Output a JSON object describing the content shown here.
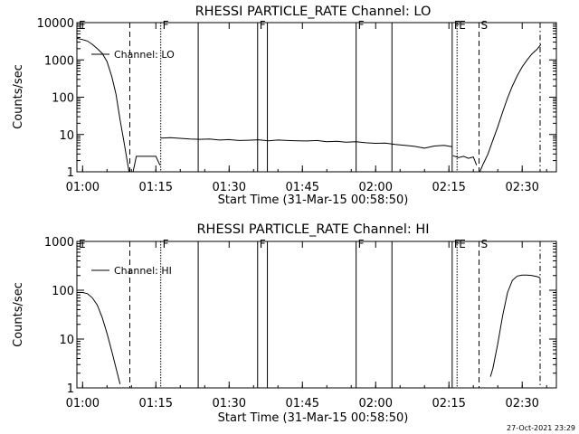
{
  "footer": {
    "timestamp": "27-Oct-2021 23:29"
  },
  "chart_data": [
    {
      "type": "line",
      "title": "RHESSI PARTICLE_RATE Channel: LO",
      "xlabel": "Start Time (31-Mar-15 00:58:50)",
      "ylabel": "Counts/sec",
      "yscale": "log",
      "xlim": [
        "00:58:50",
        "02:37:00"
      ],
      "ylim": [
        1,
        10000
      ],
      "x_ticks": [
        "01:00",
        "01:15",
        "01:30",
        "01:45",
        "02:00",
        "02:15",
        "02:30"
      ],
      "y_ticks": [
        "1",
        "10",
        "100",
        "1000",
        "10000"
      ],
      "legend": {
        "label": "Channel: LO",
        "position": "top-left"
      },
      "event_markers": [
        {
          "time": "00:58:50",
          "label": "E",
          "style": "dashdot"
        },
        {
          "time": "01:09:40",
          "label": "",
          "style": "dashed"
        },
        {
          "time": "01:16:00",
          "label": "F",
          "style": "dotted"
        },
        {
          "time": "01:23:40",
          "label": "",
          "style": "solid"
        },
        {
          "time": "01:35:50",
          "label": "F",
          "style": "solid"
        },
        {
          "time": "01:37:50",
          "label": "",
          "style": "solid"
        },
        {
          "time": "01:56:00",
          "label": "F",
          "style": "solid"
        },
        {
          "time": "02:03:20",
          "label": "",
          "style": "solid"
        },
        {
          "time": "02:15:40",
          "label": "F",
          "style": "solid"
        },
        {
          "time": "02:16:40",
          "label": "E",
          "style": "dotted"
        },
        {
          "time": "02:21:10",
          "label": "S",
          "style": "dashed"
        },
        {
          "time": "02:33:40",
          "label": "",
          "style": "dashdot"
        }
      ],
      "series": [
        {
          "segments": [
            [
              [
                "00:58:50",
                3800
              ],
              [
                "01:00:00",
                3500
              ],
              [
                "01:01:00",
                3200
              ],
              [
                "01:02:00",
                2600
              ],
              [
                "01:03:00",
                2000
              ],
              [
                "01:04:00",
                1500
              ],
              [
                "01:05:00",
                900
              ],
              [
                "01:06:00",
                350
              ],
              [
                "01:06:50",
                120
              ],
              [
                "01:07:40",
                25
              ],
              [
                "01:08:30",
                6
              ],
              [
                "01:09:30",
                1
              ],
              [
                "01:10:20",
                1
              ],
              [
                "01:11:00",
                2.6
              ],
              [
                "01:12:00",
                2.6
              ],
              [
                "01:13:00",
                2.6
              ],
              [
                "01:14:00",
                2.6
              ],
              [
                "01:15:00",
                2.6
              ],
              [
                "01:15:50",
                1.5
              ]
            ],
            [
              [
                "01:16:00",
                8
              ],
              [
                "01:18:00",
                8.2
              ],
              [
                "01:20:00",
                7.9
              ],
              [
                "01:22:00",
                7.6
              ],
              [
                "01:24:00",
                7.4
              ],
              [
                "01:26:00",
                7.6
              ],
              [
                "01:28:00",
                7.1
              ],
              [
                "01:30:00",
                7.3
              ],
              [
                "01:32:00",
                6.9
              ],
              [
                "01:34:00",
                7.0
              ],
              [
                "01:36:00",
                7.2
              ],
              [
                "01:38:00",
                6.8
              ],
              [
                "01:40:00",
                7.1
              ],
              [
                "01:42:00",
                6.9
              ],
              [
                "01:44:00",
                6.8
              ],
              [
                "01:46:00",
                6.7
              ],
              [
                "01:48:00",
                6.9
              ],
              [
                "01:50:00",
                6.4
              ],
              [
                "01:52:00",
                6.6
              ],
              [
                "01:54:00",
                6.2
              ],
              [
                "01:56:00",
                6.4
              ],
              [
                "01:58:00",
                6.0
              ],
              [
                "02:00:00",
                5.8
              ],
              [
                "02:02:00",
                5.9
              ],
              [
                "02:04:00",
                5.4
              ],
              [
                "02:06:00",
                5.1
              ],
              [
                "02:08:00",
                4.8
              ],
              [
                "02:10:00",
                4.3
              ],
              [
                "02:12:00",
                4.9
              ],
              [
                "02:14:00",
                5.1
              ],
              [
                "02:15:40",
                4.7
              ]
            ],
            [
              [
                "02:15:50",
                2.7
              ],
              [
                "02:17:00",
                2.4
              ],
              [
                "02:18:00",
                2.6
              ],
              [
                "02:19:00",
                2.3
              ],
              [
                "02:20:00",
                2.5
              ],
              [
                "02:20:40",
                1.5
              ]
            ],
            [
              [
                "02:21:20",
                1
              ],
              [
                "02:22:00",
                1.6
              ],
              [
                "02:23:00",
                3
              ],
              [
                "02:24:00",
                7
              ],
              [
                "02:25:00",
                16
              ],
              [
                "02:26:00",
                40
              ],
              [
                "02:27:00",
                95
              ],
              [
                "02:28:00",
                200
              ],
              [
                "02:29:00",
                380
              ],
              [
                "02:30:00",
                650
              ],
              [
                "02:31:00",
                1000
              ],
              [
                "02:32:00",
                1450
              ],
              [
                "02:33:00",
                1900
              ],
              [
                "02:33:50",
                2600
              ]
            ]
          ]
        }
      ]
    },
    {
      "type": "line",
      "title": "RHESSI PARTICLE_RATE Channel: HI",
      "xlabel": "Start Time (31-Mar-15 00:58:50)",
      "ylabel": "Counts/sec",
      "yscale": "log",
      "xlim": [
        "00:58:50",
        "02:37:00"
      ],
      "ylim": [
        1,
        1000
      ],
      "x_ticks": [
        "01:00",
        "01:15",
        "01:30",
        "01:45",
        "02:00",
        "02:15",
        "02:30"
      ],
      "y_ticks": [
        "1",
        "10",
        "100",
        "1000"
      ],
      "legend": {
        "label": "Channel: HI",
        "position": "top-left"
      },
      "event_markers": [
        {
          "time": "00:58:50",
          "label": "E",
          "style": "dashdot"
        },
        {
          "time": "01:09:40",
          "label": "",
          "style": "dashed"
        },
        {
          "time": "01:16:00",
          "label": "F",
          "style": "dotted"
        },
        {
          "time": "01:23:40",
          "label": "",
          "style": "solid"
        },
        {
          "time": "01:35:50",
          "label": "F",
          "style": "solid"
        },
        {
          "time": "01:37:50",
          "label": "",
          "style": "solid"
        },
        {
          "time": "01:56:00",
          "label": "F",
          "style": "solid"
        },
        {
          "time": "02:03:20",
          "label": "",
          "style": "solid"
        },
        {
          "time": "02:15:40",
          "label": "F",
          "style": "solid"
        },
        {
          "time": "02:16:40",
          "label": "E",
          "style": "dotted"
        },
        {
          "time": "02:21:10",
          "label": "S",
          "style": "dashed"
        },
        {
          "time": "02:33:40",
          "label": "",
          "style": "dashdot"
        }
      ],
      "series": [
        {
          "segments": [
            [
              [
                "00:58:50",
                90
              ],
              [
                "01:00:00",
                90
              ],
              [
                "01:01:00",
                85
              ],
              [
                "01:02:00",
                70
              ],
              [
                "01:03:00",
                50
              ],
              [
                "01:04:00",
                28
              ],
              [
                "01:05:00",
                13
              ],
              [
                "01:06:00",
                5.5
              ],
              [
                "01:07:00",
                2.2
              ],
              [
                "01:07:40",
                1.2
              ]
            ],
            [
              [
                "02:23:30",
                1.7
              ],
              [
                "02:24:00",
                2.5
              ],
              [
                "02:25:00",
                8
              ],
              [
                "02:26:00",
                30
              ],
              [
                "02:27:00",
                90
              ],
              [
                "02:28:00",
                160
              ],
              [
                "02:29:00",
                195
              ],
              [
                "02:30:00",
                205
              ],
              [
                "02:31:00",
                205
              ],
              [
                "02:32:00",
                200
              ],
              [
                "02:33:00",
                190
              ],
              [
                "02:33:40",
                180
              ]
            ]
          ]
        }
      ]
    }
  ]
}
